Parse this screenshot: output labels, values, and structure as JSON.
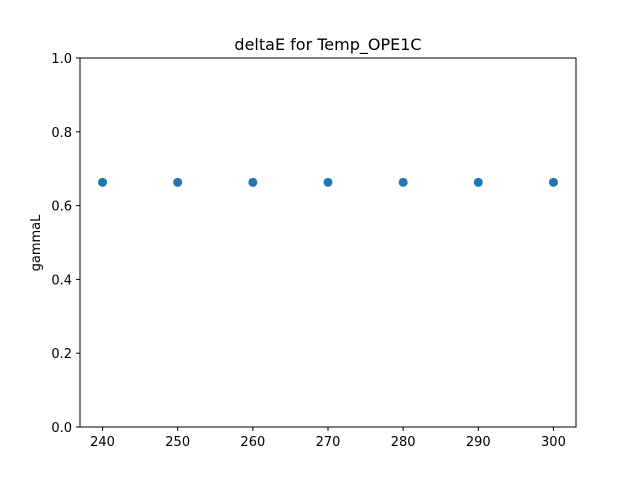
{
  "chart_data": {
    "type": "scatter",
    "title": "deltaE for Temp_OPE1C",
    "xlabel": "",
    "ylabel": "gammaL",
    "x": [
      240,
      250,
      260,
      270,
      280,
      290,
      300
    ],
    "y": [
      0.663,
      0.663,
      0.663,
      0.663,
      0.663,
      0.663,
      0.663
    ],
    "xlim": [
      237,
      303
    ],
    "ylim": [
      0.0,
      1.0
    ],
    "xticks": [
      240,
      250,
      260,
      270,
      280,
      290,
      300
    ],
    "xtick_labels": [
      "240",
      "250",
      "260",
      "270",
      "280",
      "290",
      "300"
    ],
    "yticks": [
      0.0,
      0.2,
      0.4,
      0.6,
      0.8,
      1.0
    ],
    "ytick_labels": [
      "0.0",
      "0.2",
      "0.4",
      "0.6",
      "0.8",
      "1.0"
    ],
    "grid": false,
    "marker_color": "#1f77b4"
  }
}
